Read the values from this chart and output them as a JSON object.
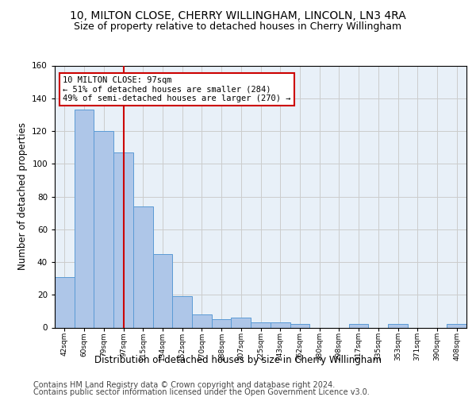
{
  "title1": "10, MILTON CLOSE, CHERRY WILLINGHAM, LINCOLN, LN3 4RA",
  "title2": "Size of property relative to detached houses in Cherry Willingham",
  "xlabel": "Distribution of detached houses by size in Cherry Willingham",
  "ylabel": "Number of detached properties",
  "footer1": "Contains HM Land Registry data © Crown copyright and database right 2024.",
  "footer2": "Contains public sector information licensed under the Open Government Licence v3.0.",
  "bar_labels": [
    "42sqm",
    "60sqm",
    "79sqm",
    "97sqm",
    "115sqm",
    "134sqm",
    "152sqm",
    "170sqm",
    "188sqm",
    "207sqm",
    "225sqm",
    "243sqm",
    "262sqm",
    "280sqm",
    "298sqm",
    "317sqm",
    "335sqm",
    "353sqm",
    "371sqm",
    "390sqm",
    "408sqm"
  ],
  "bar_values": [
    31,
    133,
    120,
    107,
    74,
    45,
    19,
    8,
    5,
    6,
    3,
    3,
    2,
    0,
    0,
    2,
    0,
    2,
    0,
    0,
    2
  ],
  "bar_color": "#aec6e8",
  "bar_edge_color": "#5b9bd5",
  "vline_x_index": 3,
  "vline_color": "#cc0000",
  "annotation_line1": "10 MILTON CLOSE: 97sqm",
  "annotation_line2": "← 51% of detached houses are smaller (284)",
  "annotation_line3": "49% of semi-detached houses are larger (270) →",
  "annotation_box_color": "#cc0000",
  "annotation_box_fill": "white",
  "annotation_fontsize": 7.5,
  "ylim": [
    0,
    160
  ],
  "yticks": [
    0,
    20,
    40,
    60,
    80,
    100,
    120,
    140,
    160
  ],
  "grid_color": "#cccccc",
  "bg_color": "#e8f0f8",
  "title1_fontsize": 10,
  "title2_fontsize": 9,
  "xlabel_fontsize": 8.5,
  "ylabel_fontsize": 8.5,
  "footer_fontsize": 7
}
